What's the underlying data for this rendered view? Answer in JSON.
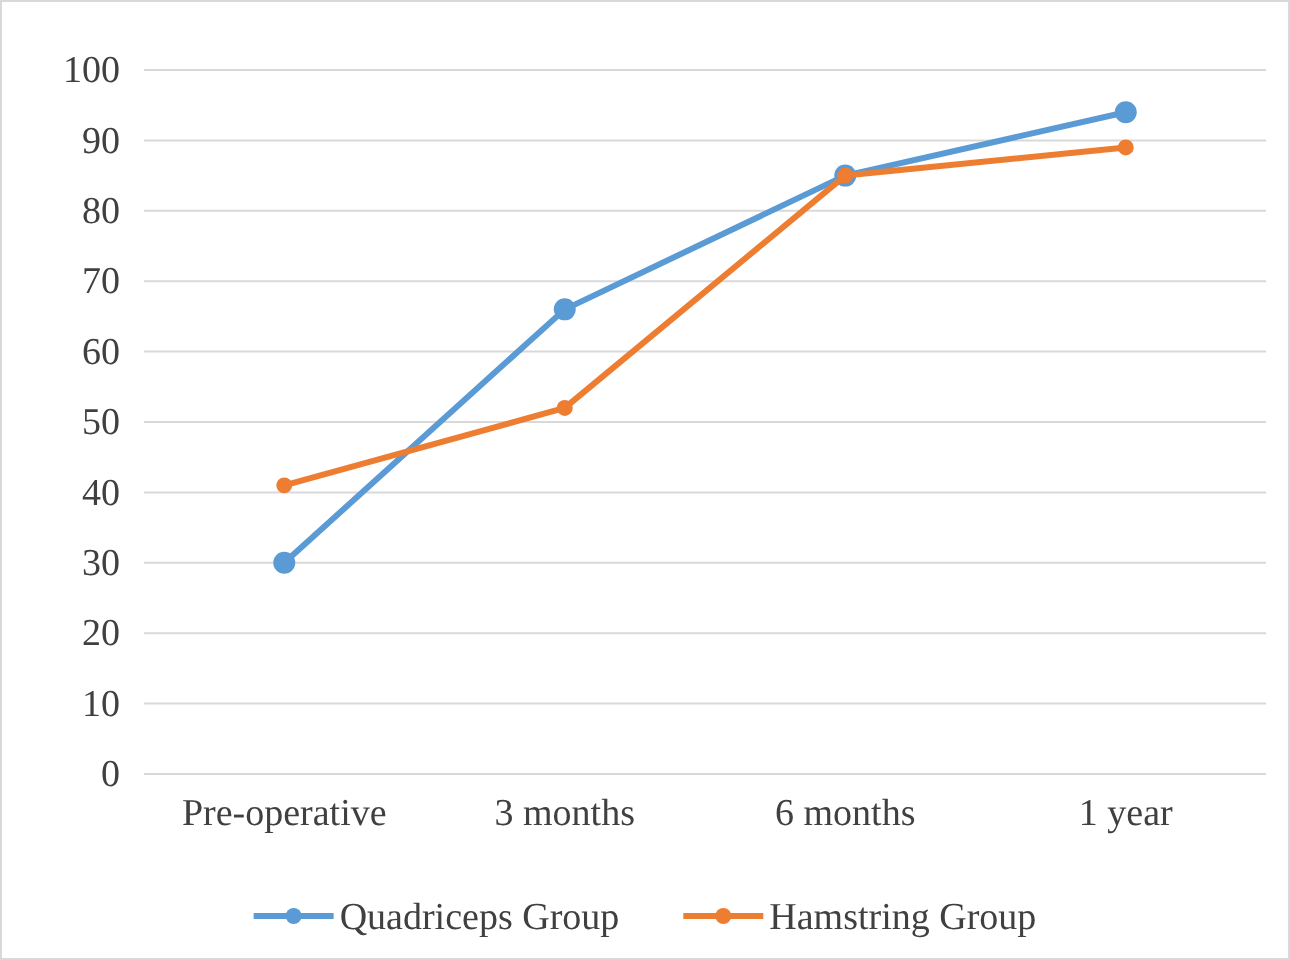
{
  "chart_data": {
    "type": "line",
    "categories": [
      "Pre-operative",
      "3 months",
      "6 months",
      "1 year"
    ],
    "series": [
      {
        "name": "Quadriceps Group",
        "color": "#5b9bd5",
        "values": [
          30,
          66,
          85,
          94
        ]
      },
      {
        "name": "Hamstring Group",
        "color": "#ed7d31",
        "values": [
          41,
          52,
          85,
          89
        ]
      }
    ],
    "ylim": [
      0,
      100
    ],
    "yticks": [
      0,
      10,
      20,
      30,
      40,
      50,
      60,
      70,
      80,
      90,
      100
    ],
    "grid": "y",
    "legend": "bottom",
    "marker": "circle",
    "line_style": "solid"
  }
}
